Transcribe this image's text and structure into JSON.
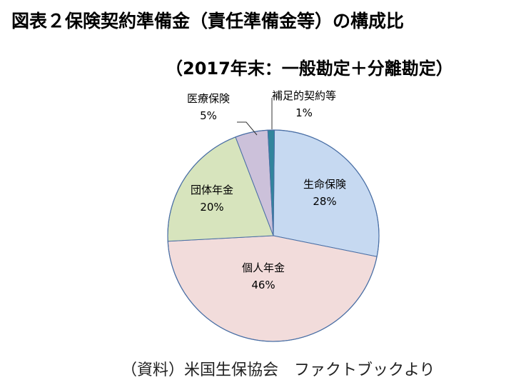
{
  "title": "図表２保険契約準備金（責任準備金等）の構成比",
  "subtitle": "（2017年末：一般勘定＋分離勘定）",
  "source": "（資料）米国生保協会　ファクトブックより",
  "chart_data": {
    "type": "pie",
    "slices": [
      {
        "label": "生命保険",
        "value": 28,
        "value_label": "28%",
        "color": "#c6d9f1"
      },
      {
        "label": "個人年金",
        "value": 46,
        "value_label": "46%",
        "color": "#f2dcdb"
      },
      {
        "label": "団体年金",
        "value": 20,
        "value_label": "20%",
        "color": "#d7e4bd"
      },
      {
        "label": "医療保険",
        "value": 5,
        "value_label": "5%",
        "color": "#ccc1da"
      },
      {
        "label": "補足的契約等",
        "value": 1,
        "value_label": "1%",
        "color": "#31859c"
      }
    ]
  }
}
